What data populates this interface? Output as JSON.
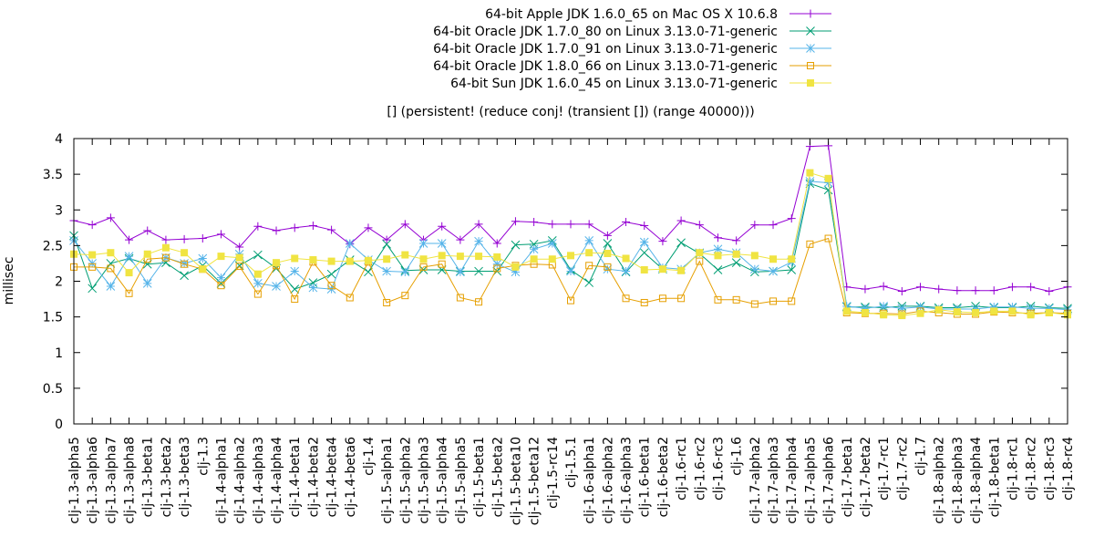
{
  "chart_data": {
    "type": "line",
    "title": "[] (persistent! (reduce conj! (transient []) (range 40000)))",
    "xlabel": "",
    "ylabel": "millisec",
    "ylim": [
      0,
      4
    ],
    "yticks": [
      "0",
      "0.5",
      "1",
      "1.5",
      "2",
      "2.5",
      "3",
      "3.5",
      "4"
    ],
    "legend_position": "top-right",
    "grid": false,
    "categories": [
      "clj-1.3-alpha5",
      "clj-1.3-alpha6",
      "clj-1.3-alpha7",
      "clj-1.3-alpha8",
      "clj-1.3-beta1",
      "clj-1.3-beta2",
      "clj-1.3-beta3",
      "clj-1.3",
      "clj-1.4-alpha1",
      "clj-1.4-alpha2",
      "clj-1.4-alpha3",
      "clj-1.4-alpha4",
      "clj-1.4-beta1",
      "clj-1.4-beta2",
      "clj-1.4-beta4",
      "clj-1.4-beta6",
      "clj-1.4",
      "clj-1.5-alpha1",
      "clj-1.5-alpha2",
      "clj-1.5-alpha3",
      "clj-1.5-alpha4",
      "clj-1.5-alpha5",
      "clj-1.5-beta1",
      "clj-1.5-beta2",
      "clj-1.5-beta10",
      "clj-1.5-beta12",
      "clj-1.5-rc14",
      "clj-1.5.1",
      "clj-1.6-alpha1",
      "clj-1.6-alpha2",
      "clj-1.6-alpha3",
      "clj-1.6-beta1",
      "clj-1.6-beta2",
      "clj-1.6-rc1",
      "clj-1.6-rc2",
      "clj-1.6-rc3",
      "clj-1.6",
      "clj-1.7-alpha2",
      "clj-1.7-alpha3",
      "clj-1.7-alpha4",
      "clj-1.7-alpha5",
      "clj-1.7-alpha6",
      "clj-1.7-beta1",
      "clj-1.7-beta2",
      "clj-1.7-rc1",
      "clj-1.7-rc2",
      "clj-1.7",
      "clj-1.8-alpha2",
      "clj-1.8-alpha3",
      "clj-1.8-alpha4",
      "clj-1.8-beta1",
      "clj-1.8-rc1",
      "clj-1.8-rc2",
      "clj-1.8-rc3",
      "clj-1.8-rc4"
    ],
    "series": [
      {
        "name": "64-bit Apple JDK 1.6.0_65 on Mac OS X 10.6.8",
        "color": "#9400d3",
        "marker": "plus",
        "values": [
          2.85,
          2.79,
          2.89,
          2.58,
          2.71,
          2.58,
          2.59,
          2.6,
          2.66,
          2.48,
          2.77,
          2.71,
          2.75,
          2.78,
          2.72,
          2.52,
          2.75,
          2.58,
          2.8,
          2.58,
          2.77,
          2.58,
          2.8,
          2.53,
          2.84,
          2.83,
          2.8,
          2.8,
          2.8,
          2.64,
          2.83,
          2.78,
          2.56,
          2.85,
          2.79,
          2.61,
          2.57,
          2.79,
          2.79,
          2.88,
          3.89,
          3.9,
          1.92,
          1.89,
          1.93,
          1.86,
          1.92,
          1.89,
          1.87,
          1.87,
          1.87,
          1.92,
          1.92,
          1.86,
          1.92
        ]
      },
      {
        "name": "64-bit Oracle JDK 1.7.0_80 on Linux 3.13.0-71-generic",
        "color": "#009e73",
        "marker": "x",
        "values": [
          2.64,
          1.9,
          2.25,
          2.32,
          2.24,
          2.26,
          2.08,
          2.22,
          1.97,
          2.22,
          2.37,
          2.18,
          1.89,
          1.98,
          2.1,
          2.3,
          2.13,
          2.52,
          2.15,
          2.16,
          2.16,
          2.14,
          2.14,
          2.14,
          2.51,
          2.52,
          2.57,
          2.16,
          1.98,
          2.53,
          2.13,
          2.4,
          2.17,
          2.54,
          2.39,
          2.16,
          2.26,
          2.13,
          2.14,
          2.16,
          3.37,
          3.28,
          1.64,
          1.64,
          1.63,
          1.65,
          1.65,
          1.63,
          1.63,
          1.65,
          1.63,
          1.63,
          1.65,
          1.63,
          1.62
        ]
      },
      {
        "name": "64-bit Oracle JDK 1.7.0_91 on Linux 3.13.0-71-generic",
        "color": "#56b4e9",
        "marker": "star",
        "values": [
          2.57,
          2.25,
          1.93,
          2.35,
          1.97,
          2.33,
          2.25,
          2.32,
          2.05,
          2.38,
          1.97,
          1.93,
          2.14,
          1.91,
          1.89,
          2.53,
          2.3,
          2.14,
          2.13,
          2.53,
          2.53,
          2.13,
          2.56,
          2.24,
          2.13,
          2.45,
          2.53,
          2.14,
          2.57,
          2.17,
          2.14,
          2.55,
          2.19,
          2.17,
          2.4,
          2.45,
          2.4,
          2.17,
          2.14,
          2.27,
          3.4,
          3.38,
          1.65,
          1.62,
          1.65,
          1.62,
          1.64,
          1.61,
          1.61,
          1.61,
          1.64,
          1.64,
          1.62,
          1.62,
          1.6
        ]
      },
      {
        "name": "64-bit Oracle JDK 1.8.0_66 on Linux 3.13.0-71-generic",
        "color": "#e69f00",
        "marker": "open-square",
        "values": [
          2.2,
          2.2,
          2.18,
          1.83,
          2.31,
          2.33,
          2.24,
          2.17,
          1.94,
          2.21,
          1.82,
          2.22,
          1.75,
          2.27,
          1.94,
          1.77,
          2.27,
          1.7,
          1.8,
          2.2,
          2.24,
          1.77,
          1.71,
          2.18,
          2.22,
          2.24,
          2.23,
          1.73,
          2.22,
          2.2,
          1.76,
          1.7,
          1.76,
          1.76,
          2.28,
          1.74,
          1.74,
          1.68,
          1.72,
          1.72,
          2.52,
          2.6,
          1.56,
          1.55,
          1.55,
          1.54,
          1.58,
          1.56,
          1.54,
          1.54,
          1.57,
          1.56,
          1.55,
          1.56,
          1.55
        ]
      },
      {
        "name": "64-bit Sun JDK 1.6.0_45 on Linux 3.13.0-71-generic",
        "color": "#f0e442",
        "marker": "filled-square",
        "values": [
          2.38,
          2.37,
          2.4,
          2.12,
          2.38,
          2.47,
          2.4,
          2.17,
          2.35,
          2.33,
          2.1,
          2.26,
          2.32,
          2.3,
          2.28,
          2.28,
          2.29,
          2.31,
          2.37,
          2.31,
          2.36,
          2.35,
          2.35,
          2.34,
          2.2,
          2.31,
          2.31,
          2.36,
          2.4,
          2.39,
          2.32,
          2.16,
          2.17,
          2.15,
          2.4,
          2.36,
          2.38,
          2.36,
          2.31,
          2.31,
          3.52,
          3.44,
          1.58,
          1.56,
          1.53,
          1.52,
          1.55,
          1.6,
          1.57,
          1.56,
          1.58,
          1.58,
          1.53,
          1.56,
          1.53
        ]
      }
    ]
  }
}
